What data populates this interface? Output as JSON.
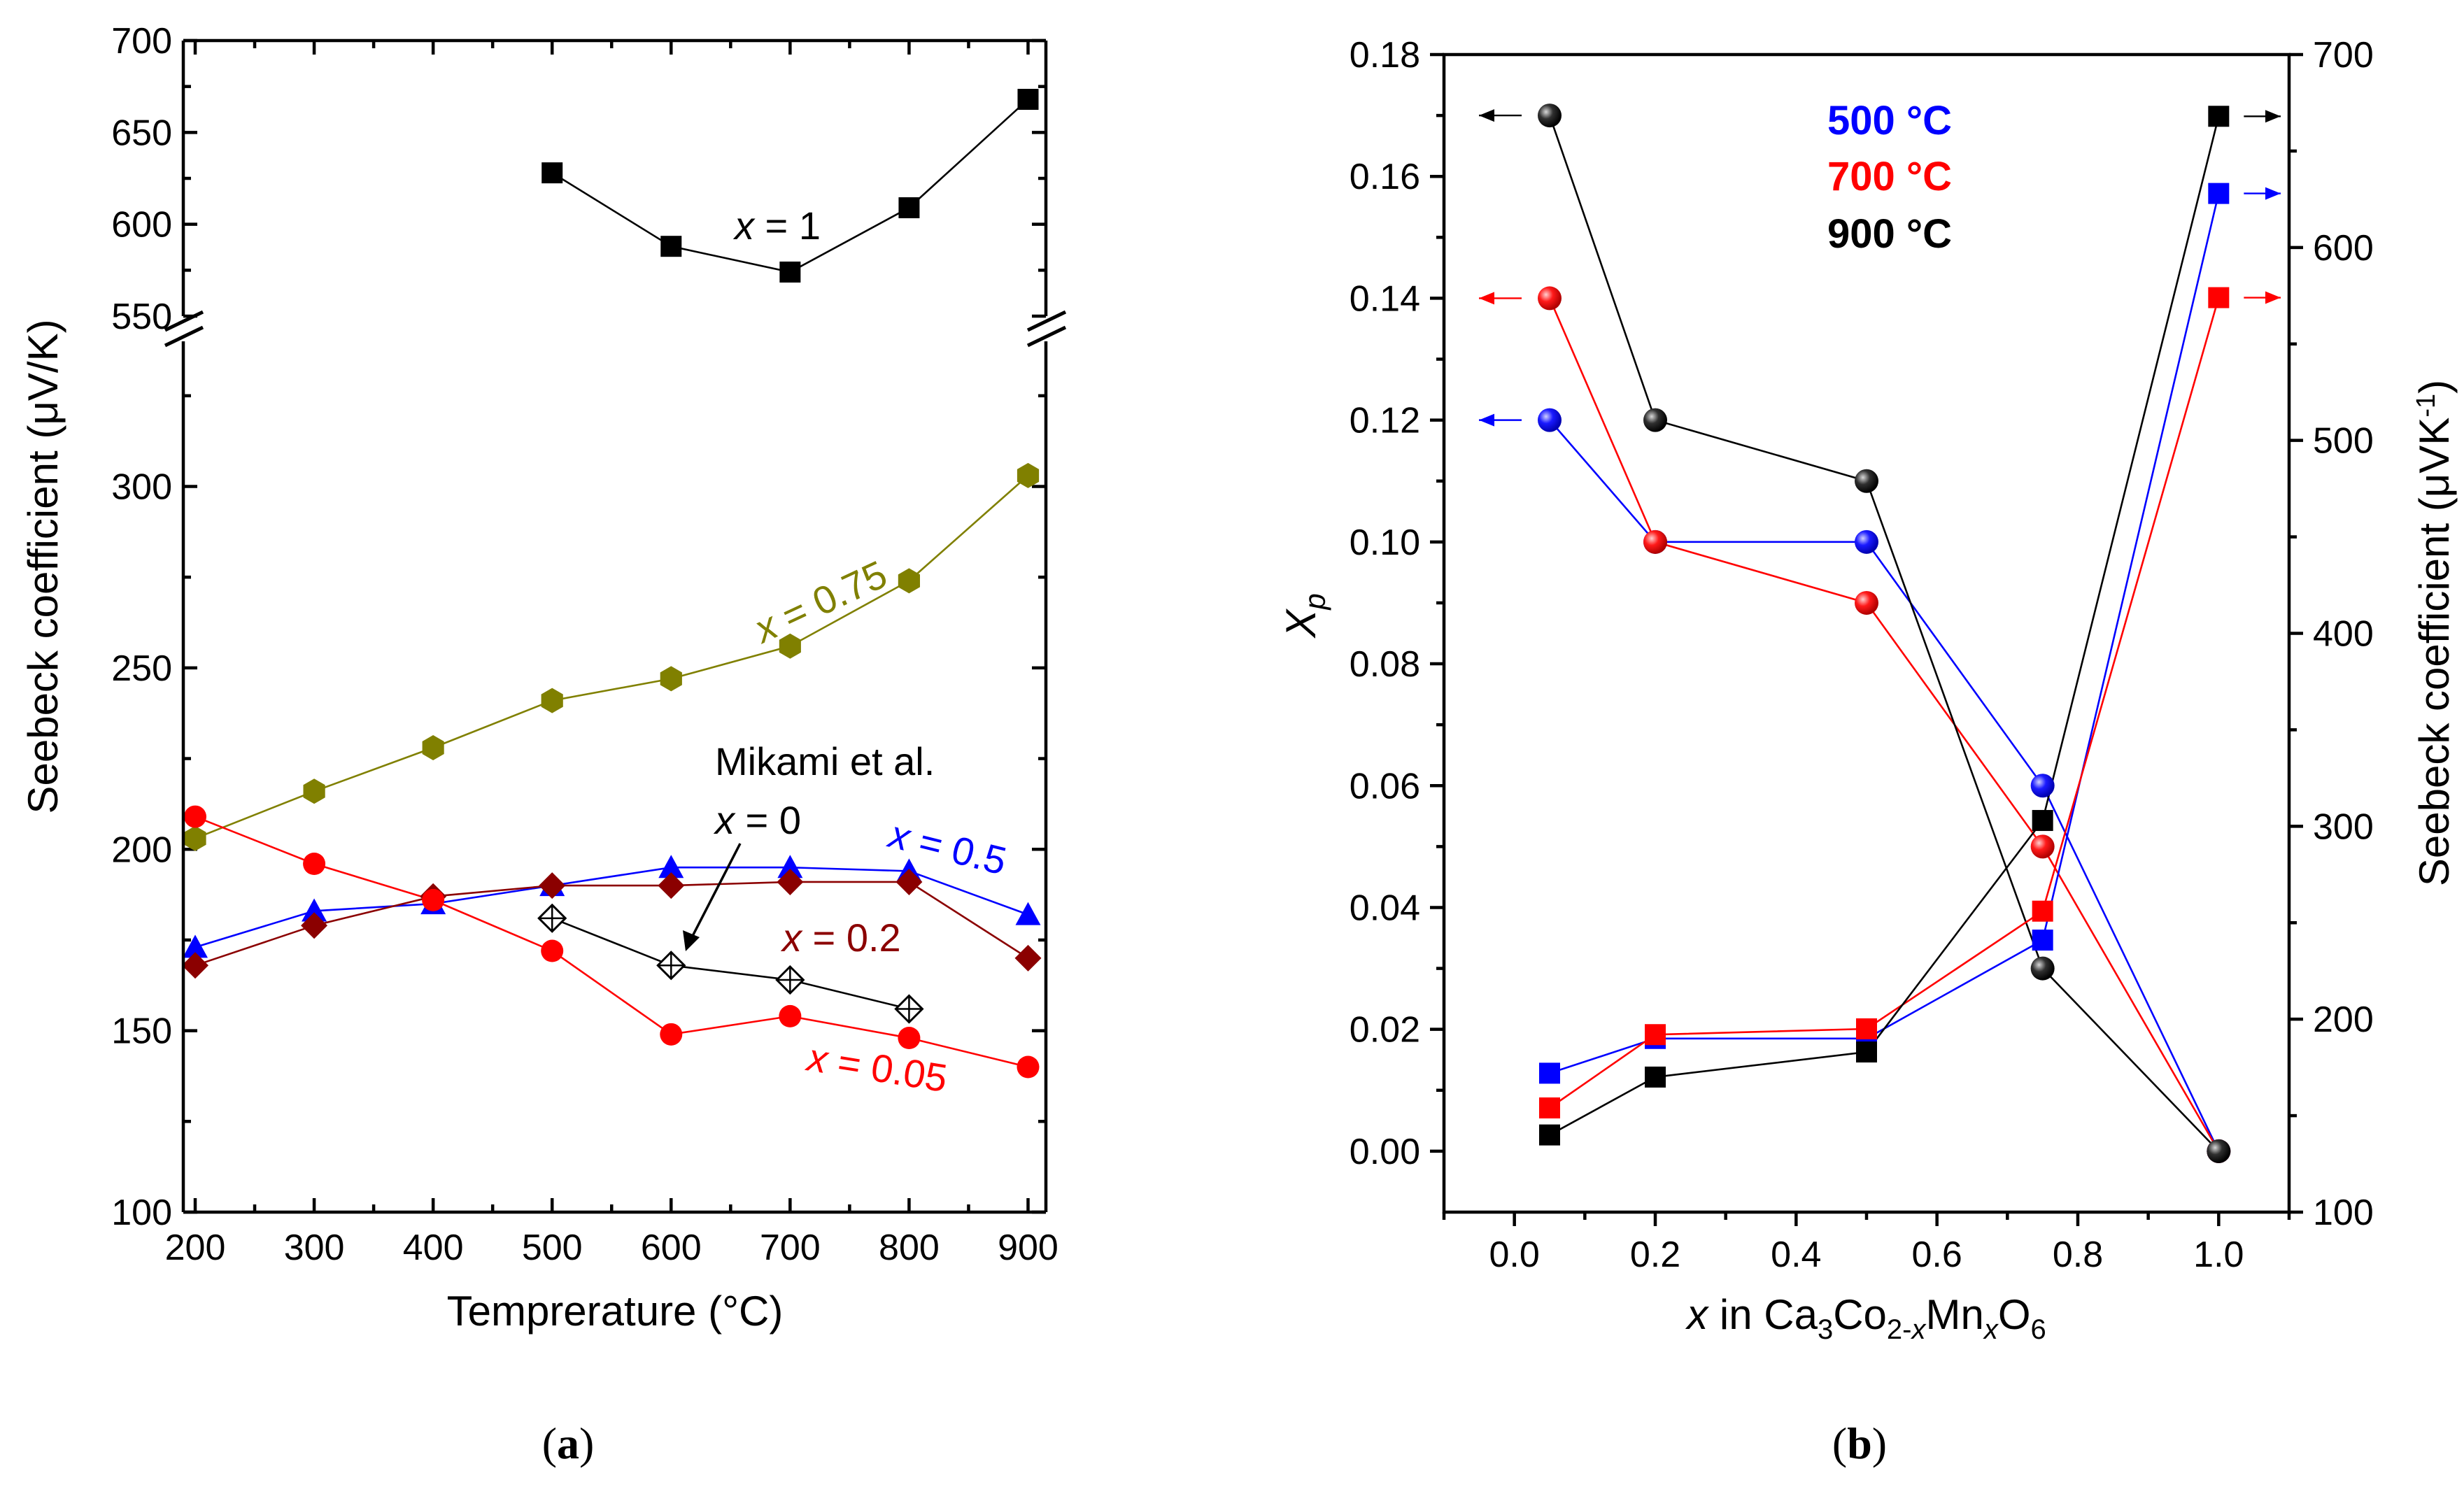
{
  "figure_labels": {
    "a_open": "(",
    "a_letter": "a",
    "a_close": ")",
    "b_open": "(",
    "b_letter": "b",
    "b_close": ")"
  },
  "chart_data": [
    {
      "type": "line",
      "panel": "a",
      "xlabel": "Temprerature (°C)",
      "ylabel": "Seebeck coefficient (μV/K)",
      "x_ticks": [
        200,
        300,
        400,
        500,
        600,
        700,
        800,
        900
      ],
      "y_ticks": [
        100,
        150,
        200,
        250,
        300,
        550,
        600,
        650,
        700
      ],
      "xlim": [
        190,
        915
      ],
      "ylim_lower": [
        100,
        340
      ],
      "ylim_upper": [
        550,
        700
      ],
      "axis_break": true,
      "series": [
        {
          "name": "x = 1",
          "label_italic": "x",
          "label_rest": " = 1",
          "color": "#000000",
          "marker": "square",
          "x": [
            500,
            600,
            700,
            800,
            900
          ],
          "y": [
            628,
            588,
            574,
            609,
            668
          ]
        },
        {
          "name": "x = 0.75",
          "label_italic": "x",
          "label_rest": " = 0.75",
          "color": "#808000",
          "marker": "hexagon",
          "x": [
            200,
            300,
            400,
            500,
            600,
            700,
            800,
            900
          ],
          "y": [
            203,
            216,
            228,
            241,
            247,
            256,
            274,
            303
          ]
        },
        {
          "name": "x = 0.5",
          "label_italic": "x",
          "label_rest": " = 0.5",
          "color": "#0000ff",
          "marker": "triangle",
          "x": [
            200,
            300,
            400,
            500,
            600,
            700,
            800,
            900
          ],
          "y": [
            173,
            183,
            185,
            190,
            195,
            195,
            194,
            182
          ]
        },
        {
          "name": "x = 0.2",
          "label_italic": "x",
          "label_rest": " = 0.2",
          "color": "#8b0000",
          "marker": "diamond",
          "x": [
            200,
            300,
            400,
            500,
            600,
            700,
            800,
            900
          ],
          "y": [
            168,
            179,
            187,
            190,
            190,
            191,
            191,
            170
          ]
        },
        {
          "name": "x = 0.05",
          "label_italic": "x",
          "label_rest": " = 0.05",
          "color": "#ff0000",
          "marker": "circle",
          "x": [
            200,
            300,
            400,
            500,
            600,
            700,
            800,
            900
          ],
          "y": [
            209,
            196,
            186,
            172,
            149,
            154,
            148,
            140
          ]
        },
        {
          "name": "Mikami et al. x = 0",
          "label_line1": "Mikami et al.",
          "label_italic": "x",
          "label_rest": " = 0",
          "color": "#000000",
          "marker": "open-diamond-cross",
          "x": [
            500,
            600,
            700,
            800
          ],
          "y": [
            181,
            168,
            164,
            156
          ]
        }
      ]
    },
    {
      "type": "line",
      "panel": "b",
      "xlabel_italic": "x",
      "xlabel_parts": [
        " in Ca",
        "3",
        "Co",
        "2-",
        "x",
        "Mn",
        "x",
        "O",
        "6"
      ],
      "ylabel_left": "Xp",
      "ylabel_left_main": "X",
      "ylabel_left_sub": "p",
      "ylabel_right_main": "Seebeck coefficient (μVK",
      "ylabel_right_sup": "-1",
      "ylabel_right_end": ")",
      "x_ticks": [
        0.0,
        0.2,
        0.4,
        0.6,
        0.8,
        1.0
      ],
      "x_tick_labels": [
        "0.0",
        "0.2",
        "0.4",
        "0.6",
        "0.8",
        "1.0"
      ],
      "y_left_ticks": [
        0.0,
        0.02,
        0.04,
        0.06,
        0.08,
        0.1,
        0.12,
        0.14,
        0.16,
        0.18
      ],
      "y_left_tick_labels": [
        "0.00",
        "0.02",
        "0.04",
        "0.06",
        "0.08",
        "0.10",
        "0.12",
        "0.14",
        "0.16",
        "0.18"
      ],
      "y_right_ticks": [
        100,
        200,
        300,
        400,
        500,
        600,
        700
      ],
      "xlim": [
        -0.1,
        1.1
      ],
      "ylim_left": [
        -0.01,
        0.18
      ],
      "ylim_right": [
        100,
        700
      ],
      "legend": [
        {
          "label": "500 °C",
          "color": "#0000ff"
        },
        {
          "label": "700 °C",
          "color": "#ff0000"
        },
        {
          "label": "900 °C",
          "color": "#000000"
        }
      ],
      "xp_series": [
        {
          "name": "500 °C",
          "color": "#0000ff",
          "marker": "sphere",
          "x": [
            0.05,
            0.2,
            0.5,
            0.75,
            1.0
          ],
          "y": [
            0.12,
            0.1,
            0.1,
            0.06,
            0.0
          ]
        },
        {
          "name": "700 °C",
          "color": "#ff0000",
          "marker": "sphere",
          "x": [
            0.05,
            0.2,
            0.5,
            0.75,
            1.0
          ],
          "y": [
            0.14,
            0.1,
            0.09,
            0.05,
            0.0
          ]
        },
        {
          "name": "900 °C",
          "color": "#000000",
          "marker": "sphere",
          "x": [
            0.05,
            0.2,
            0.5,
            0.75,
            1.0
          ],
          "y": [
            0.17,
            0.12,
            0.11,
            0.03,
            0.0
          ]
        }
      ],
      "seebeck_series": [
        {
          "name": "500 °C",
          "color": "#0000ff",
          "marker": "square",
          "x": [
            0.05,
            0.2,
            0.5,
            0.75,
            1.0
          ],
          "y": [
            172,
            190,
            190,
            241,
            628
          ]
        },
        {
          "name": "700 °C",
          "color": "#ff0000",
          "marker": "square",
          "x": [
            0.05,
            0.2,
            0.5,
            0.75,
            1.0
          ],
          "y": [
            154,
            192,
            195,
            256,
            574
          ]
        },
        {
          "name": "900 °C",
          "color": "#000000",
          "marker": "square",
          "x": [
            0.05,
            0.2,
            0.5,
            0.75,
            1.0
          ],
          "y": [
            140,
            170,
            183,
            303,
            668
          ]
        }
      ],
      "axis_indicators": [
        {
          "series": "900 °C",
          "kind": "xp",
          "side": "left"
        },
        {
          "series": "700 °C",
          "kind": "xp",
          "side": "left"
        },
        {
          "series": "500 °C",
          "kind": "xp",
          "side": "left"
        },
        {
          "series": "900 °C",
          "kind": "seebeck",
          "side": "right"
        },
        {
          "series": "500 °C",
          "kind": "seebeck",
          "side": "right"
        },
        {
          "series": "700 °C",
          "kind": "seebeck",
          "side": "right"
        }
      ]
    }
  ]
}
